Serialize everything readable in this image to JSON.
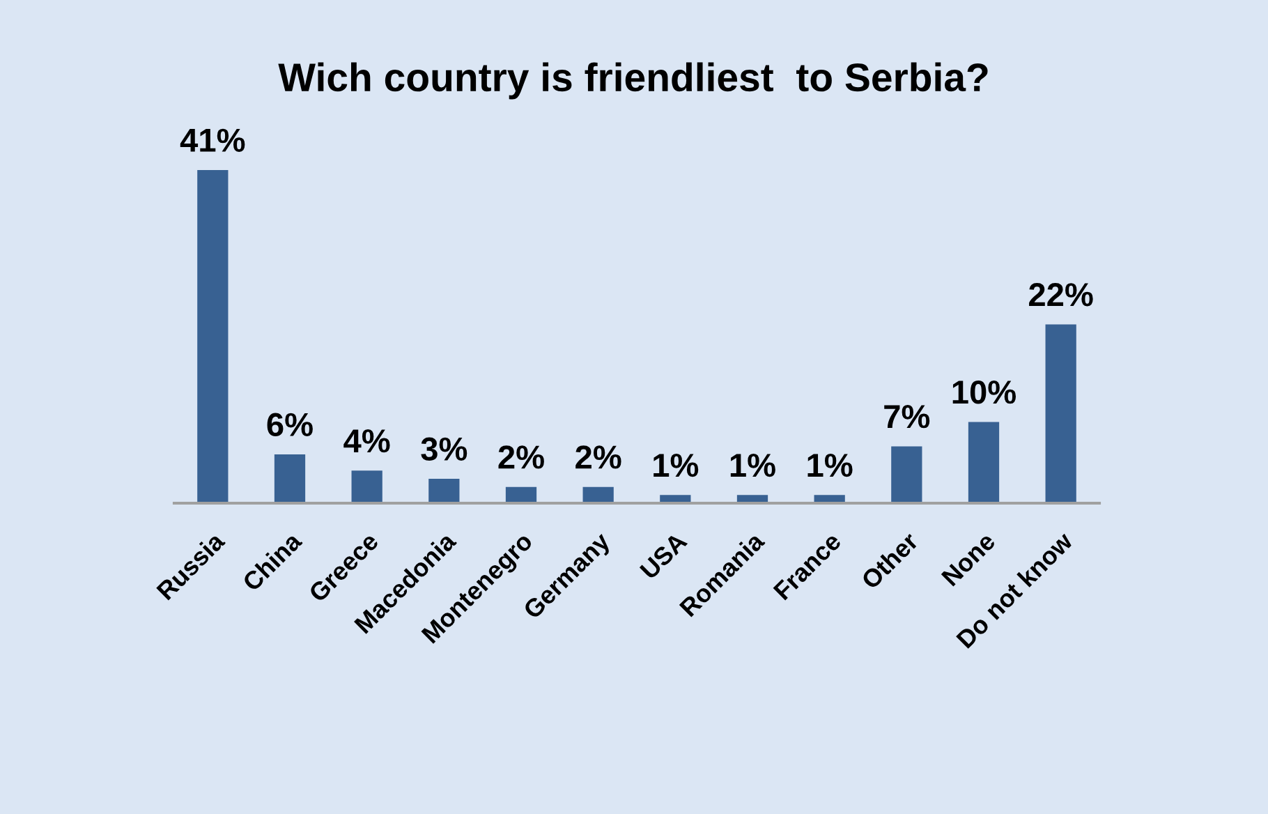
{
  "chart_data": {
    "type": "bar",
    "title": "Wich country is friendliest  to Serbia?",
    "categories": [
      "Russia",
      "China",
      "Greece",
      "Macedonia",
      "Montenegro",
      "Germany",
      "USA",
      "Romania",
      "France",
      "Other",
      "None",
      "Do not know"
    ],
    "values": [
      41,
      6,
      4,
      3,
      2,
      2,
      1,
      1,
      1,
      7,
      10,
      22
    ],
    "value_labels": [
      "41%",
      "6%",
      "4%",
      "3%",
      "2%",
      "2%",
      "1%",
      "1%",
      "1%",
      "7%",
      "10%",
      "22%"
    ],
    "color": "#386192",
    "tick_labels": "x"
  }
}
